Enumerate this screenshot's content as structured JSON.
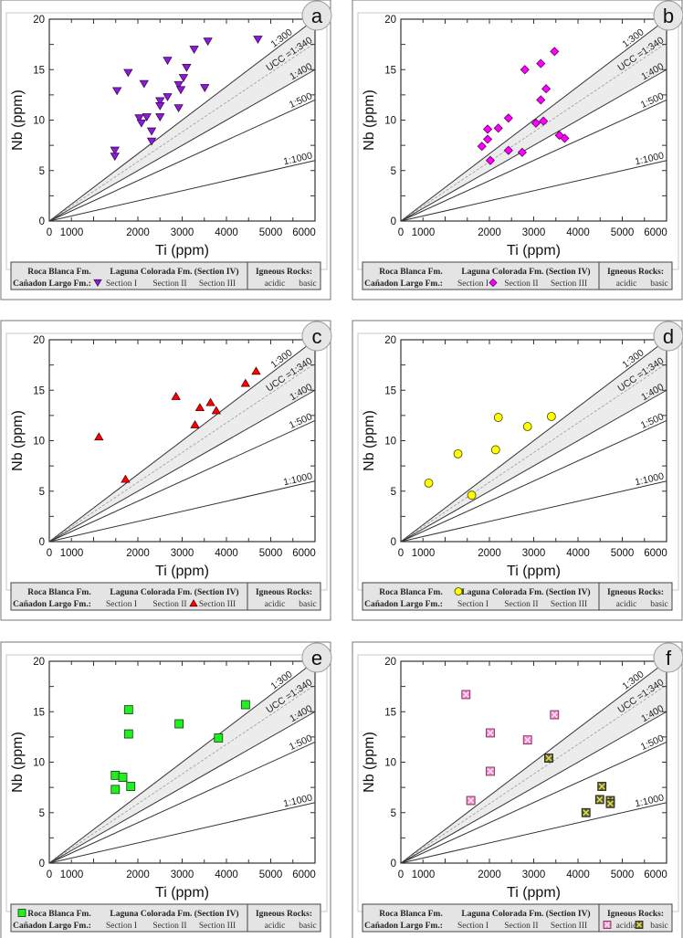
{
  "legend": {
    "roca_blanca": "Roca Blanca Fm.",
    "laguna_colorada": "Laguna Colorada Fm. (Section IV)",
    "igneous": "Igneous Rocks:",
    "canadon_largo": "Cañadon Largo Fm.:",
    "section_1": "Section I",
    "section_2": "Section II",
    "section_3": "Section III",
    "acidic": "acidic",
    "basic": "basic"
  },
  "reference_lines": [
    {
      "label": "1:300",
      "ratio": 300,
      "style": "solid"
    },
    {
      "label": "UCC =1:340",
      "ratio": 340,
      "style": "dashed"
    },
    {
      "label": "1:400",
      "ratio": 400,
      "style": "solid"
    },
    {
      "label": "1:500",
      "ratio": 500,
      "style": "solid"
    },
    {
      "label": "1:1000",
      "ratio": 1000,
      "style": "solid"
    }
  ],
  "chart_data": [
    {
      "panel": "a",
      "type": "scatter",
      "xlabel": "Ti (ppm)",
      "ylabel": "Nb (ppm)",
      "xlim": [
        0,
        6000
      ],
      "ylim": [
        0,
        20
      ],
      "xticks": [
        0,
        1000,
        2000,
        3000,
        4000,
        5000,
        6000
      ],
      "yticks": [
        0,
        5,
        10,
        15,
        20
      ],
      "series": [
        {
          "name": "Cañadon Largo Fm. Section I",
          "legend_entry": "section_1",
          "marker": "triangle-down",
          "color": "#8e1ad8",
          "stroke": "#3a0a5a",
          "points": [
            [
              1480,
              7.0
            ],
            [
              1480,
              6.4
            ],
            [
              1530,
              12.9
            ],
            [
              1780,
              14.7
            ],
            [
              2140,
              13.6
            ],
            [
              2030,
              10.2
            ],
            [
              2080,
              9.7
            ],
            [
              2200,
              10.3
            ],
            [
              2310,
              8.9
            ],
            [
              2310,
              7.9
            ],
            [
              2500,
              11.9
            ],
            [
              2500,
              11.4
            ],
            [
              2500,
              10.3
            ],
            [
              2670,
              12.3
            ],
            [
              2670,
              15.9
            ],
            [
              2920,
              13.5
            ],
            [
              2970,
              13.0
            ],
            [
              2920,
              11.2
            ],
            [
              3030,
              14.2
            ],
            [
              3100,
              15.2
            ],
            [
              3270,
              17.0
            ],
            [
              3510,
              13.2
            ],
            [
              3580,
              17.8
            ],
            [
              4710,
              18.0
            ]
          ]
        }
      ]
    },
    {
      "panel": "b",
      "type": "scatter",
      "xlabel": "Ti (ppm)",
      "ylabel": "Nb (ppm)",
      "xlim": [
        0,
        6000
      ],
      "ylim": [
        0,
        20
      ],
      "xticks": [
        0,
        1000,
        2000,
        3000,
        4000,
        5000,
        6000
      ],
      "yticks": [
        0,
        5,
        10,
        15,
        20
      ],
      "series": [
        {
          "name": "Cañadon Largo Fm. Section II",
          "legend_entry": "section_2",
          "marker": "diamond",
          "color": "#ff00ff",
          "stroke": "#5a005a",
          "points": [
            [
              1830,
              7.4
            ],
            [
              1960,
              8.1
            ],
            [
              1960,
              9.1
            ],
            [
              2020,
              6.0
            ],
            [
              2200,
              9.2
            ],
            [
              2430,
              10.2
            ],
            [
              2430,
              7.0
            ],
            [
              2740,
              6.8
            ],
            [
              2800,
              15.0
            ],
            [
              3050,
              9.7
            ],
            [
              3160,
              12.0
            ],
            [
              3160,
              15.6
            ],
            [
              3220,
              9.9
            ],
            [
              3280,
              13.1
            ],
            [
              3470,
              16.8
            ],
            [
              3580,
              8.5
            ],
            [
              3700,
              8.2
            ]
          ]
        }
      ]
    },
    {
      "panel": "c",
      "type": "scatter",
      "xlabel": "Ti (ppm)",
      "ylabel": "Nb (ppm)",
      "xlim": [
        0,
        6000
      ],
      "ylim": [
        0,
        20
      ],
      "xticks": [
        0,
        1000,
        2000,
        3000,
        4000,
        5000,
        6000
      ],
      "yticks": [
        0,
        5,
        10,
        15,
        20
      ],
      "series": [
        {
          "name": "Cañadon Largo Fm. Section III",
          "legend_entry": "section_3",
          "marker": "triangle-up",
          "color": "#ff0000",
          "stroke": "#5a0000",
          "points": [
            [
              1120,
              10.4
            ],
            [
              1720,
              6.2
            ],
            [
              2860,
              14.4
            ],
            [
              3290,
              11.6
            ],
            [
              3400,
              13.3
            ],
            [
              3640,
              13.8
            ],
            [
              3770,
              13.0
            ],
            [
              4430,
              15.7
            ],
            [
              4670,
              16.9
            ]
          ]
        }
      ]
    },
    {
      "panel": "d",
      "type": "scatter",
      "xlabel": "Ti (ppm)",
      "ylabel": "Nb (ppm)",
      "xlim": [
        0,
        6000
      ],
      "ylim": [
        0,
        20
      ],
      "xticks": [
        0,
        1000,
        2000,
        3000,
        4000,
        5000,
        6000
      ],
      "yticks": [
        0,
        5,
        10,
        15,
        20
      ],
      "series": [
        {
          "name": "Laguna Colorada Fm. (Section IV)",
          "legend_entry": "laguna_colorada",
          "marker": "circle",
          "color": "#ffff00",
          "stroke": "#444400",
          "points": [
            [
              630,
              5.8
            ],
            [
              1290,
              8.7
            ],
            [
              1600,
              4.6
            ],
            [
              2140,
              9.1
            ],
            [
              2200,
              12.3
            ],
            [
              2860,
              11.4
            ],
            [
              3400,
              12.4
            ]
          ]
        }
      ]
    },
    {
      "panel": "e",
      "type": "scatter",
      "xlabel": "Ti (ppm)",
      "ylabel": "Nb (ppm)",
      "xlim": [
        0,
        6000
      ],
      "ylim": [
        0,
        20
      ],
      "xticks": [
        0,
        1000,
        2000,
        3000,
        4000,
        5000,
        6000
      ],
      "yticks": [
        0,
        5,
        10,
        15,
        20
      ],
      "series": [
        {
          "name": "Roca Blanca Fm.",
          "legend_entry": "roca_blanca",
          "marker": "square",
          "color": "#22ee22",
          "stroke": "#0a400a",
          "points": [
            [
              1490,
              8.7
            ],
            [
              1490,
              7.3
            ],
            [
              1660,
              8.5
            ],
            [
              1790,
              15.2
            ],
            [
              1790,
              12.8
            ],
            [
              1840,
              7.6
            ],
            [
              2930,
              13.8
            ],
            [
              3820,
              12.4
            ],
            [
              4430,
              15.7
            ]
          ]
        }
      ]
    },
    {
      "panel": "f",
      "type": "scatter",
      "xlabel": "Ti (ppm)",
      "ylabel": "Nb (ppm)",
      "xlim": [
        0,
        6000
      ],
      "ylim": [
        0,
        20
      ],
      "xticks": [
        0,
        1000,
        2000,
        3000,
        4000,
        5000,
        6000
      ],
      "yticks": [
        0,
        5,
        10,
        15,
        20
      ],
      "series": [
        {
          "name": "Igneous Rocks: acidic",
          "legend_entry": "acidic",
          "marker": "square-x",
          "color": "#f080c8",
          "stroke": "#6a2a4a",
          "cross": "#ffe0f0",
          "points": [
            [
              1470,
              16.7
            ],
            [
              1580,
              6.2
            ],
            [
              2020,
              12.9
            ],
            [
              2020,
              9.1
            ],
            [
              2860,
              12.2
            ],
            [
              3470,
              14.7
            ]
          ]
        },
        {
          "name": "Igneous Rocks: basic",
          "legend_entry": "basic",
          "marker": "square-x",
          "color": "#5c5c2a",
          "stroke": "#202010",
          "cross": "#d8d860",
          "points": [
            [
              3340,
              10.4
            ],
            [
              4180,
              5.0
            ],
            [
              4490,
              6.3
            ],
            [
              4540,
              7.6
            ],
            [
              4730,
              6.2
            ],
            [
              4730,
              5.9
            ]
          ]
        }
      ]
    }
  ]
}
